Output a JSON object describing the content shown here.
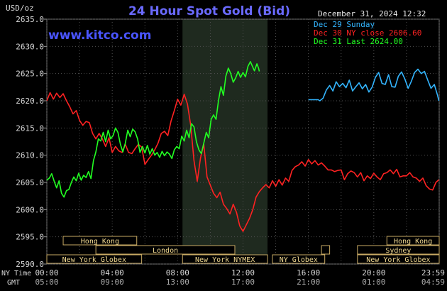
{
  "chart_data": {
    "type": "line",
    "title": "24 Hour Spot Gold (Bid)",
    "unit_label": "USD/oz",
    "watermark": "www.kitco.com",
    "timestamp": "December 31, 2024 12:32",
    "ylim": [
      2590,
      2635
    ],
    "y_ticks": [
      "2635.0",
      "2630.0",
      "2625.0",
      "2620.0",
      "2615.0",
      "2610.0",
      "2605.0",
      "2600.0",
      "2595.0",
      "2590.0"
    ],
    "x_range_hours": [
      0,
      24
    ],
    "x_time_labels": {
      "ny_label": "NY Time",
      "gmt_label": "GMT",
      "ny": [
        "00:00",
        "04:00",
        "08:00",
        "12:00",
        "16:00",
        "20:00",
        "23:59"
      ],
      "gmt": [
        "05:00",
        "09:00",
        "13:00",
        "17:00",
        "21:00",
        "01:00",
        "04:59"
      ]
    },
    "series": [
      {
        "name": "Dec 29 Sunday",
        "color": "#33b5ff",
        "points": [
          [
            16.0,
            2620.2
          ],
          [
            16.6,
            2620.2
          ],
          [
            16.7,
            2620.0
          ],
          [
            16.9,
            2620.5
          ],
          [
            17.1,
            2622.0
          ],
          [
            17.3,
            2622.8
          ],
          [
            17.5,
            2621.8
          ],
          [
            17.7,
            2623.5
          ],
          [
            17.9,
            2622.6
          ],
          [
            18.1,
            2623.2
          ],
          [
            18.3,
            2622.4
          ],
          [
            18.5,
            2623.8
          ],
          [
            18.7,
            2621.8
          ],
          [
            18.9,
            2622.6
          ],
          [
            19.1,
            2623.3
          ],
          [
            19.3,
            2622.2
          ],
          [
            19.5,
            2623.0
          ],
          [
            19.7,
            2621.6
          ],
          [
            19.9,
            2622.5
          ],
          [
            20.1,
            2624.3
          ],
          [
            20.3,
            2625.2
          ],
          [
            20.5,
            2623.2
          ],
          [
            20.7,
            2623.0
          ],
          [
            20.9,
            2624.8
          ],
          [
            21.1,
            2622.6
          ],
          [
            21.3,
            2622.5
          ],
          [
            21.5,
            2624.5
          ],
          [
            21.7,
            2625.3
          ],
          [
            21.9,
            2624.0
          ],
          [
            22.1,
            2622.3
          ],
          [
            22.3,
            2623.6
          ],
          [
            22.5,
            2625.2
          ],
          [
            22.7,
            2625.8
          ],
          [
            22.9,
            2625.0
          ],
          [
            23.1,
            2625.4
          ],
          [
            23.3,
            2623.8
          ],
          [
            23.5,
            2622.3
          ],
          [
            23.7,
            2623.0
          ],
          [
            23.9,
            2621.0
          ],
          [
            23.98,
            2620.0
          ]
        ]
      },
      {
        "name": "Dec 30 NY close 2606.60",
        "color": "#ff2222",
        "points": [
          [
            0.0,
            2620.0
          ],
          [
            0.2,
            2621.5
          ],
          [
            0.4,
            2620.3
          ],
          [
            0.6,
            2621.4
          ],
          [
            0.8,
            2620.6
          ],
          [
            1.0,
            2621.3
          ],
          [
            1.2,
            2620.0
          ],
          [
            1.4,
            2618.9
          ],
          [
            1.6,
            2617.6
          ],
          [
            1.8,
            2618.2
          ],
          [
            2.0,
            2616.4
          ],
          [
            2.2,
            2615.5
          ],
          [
            2.4,
            2616.2
          ],
          [
            2.6,
            2616.0
          ],
          [
            2.8,
            2614.0
          ],
          [
            3.0,
            2613.0
          ],
          [
            3.2,
            2614.0
          ],
          [
            3.4,
            2613.0
          ],
          [
            3.6,
            2611.6
          ],
          [
            3.8,
            2613.2
          ],
          [
            4.0,
            2610.5
          ],
          [
            4.2,
            2611.6
          ],
          [
            4.4,
            2610.8
          ],
          [
            4.6,
            2610.5
          ],
          [
            4.8,
            2612.0
          ],
          [
            5.0,
            2610.5
          ],
          [
            5.2,
            2610.3
          ],
          [
            5.4,
            2611.2
          ],
          [
            5.6,
            2612.0
          ],
          [
            5.8,
            2611.5
          ],
          [
            6.0,
            2608.3
          ],
          [
            6.2,
            2609.2
          ],
          [
            6.4,
            2610.0
          ],
          [
            6.6,
            2611.0
          ],
          [
            6.8,
            2612.2
          ],
          [
            7.0,
            2614.0
          ],
          [
            7.2,
            2614.4
          ],
          [
            7.4,
            2613.6
          ],
          [
            7.6,
            2616.3
          ],
          [
            7.8,
            2618.2
          ],
          [
            8.0,
            2620.3
          ],
          [
            8.2,
            2619.2
          ],
          [
            8.4,
            2621.2
          ],
          [
            8.6,
            2619.4
          ],
          [
            8.8,
            2615.5
          ],
          [
            9.0,
            2609.0
          ],
          [
            9.2,
            2605.2
          ],
          [
            9.4,
            2609.5
          ],
          [
            9.6,
            2612.0
          ],
          [
            9.8,
            2606.0
          ],
          [
            10.0,
            2604.5
          ],
          [
            10.2,
            2603.0
          ],
          [
            10.4,
            2602.2
          ],
          [
            10.6,
            2603.2
          ],
          [
            10.8,
            2601.0
          ],
          [
            11.0,
            2600.2
          ],
          [
            11.2,
            2599.2
          ],
          [
            11.4,
            2601.0
          ],
          [
            11.6,
            2599.5
          ],
          [
            11.8,
            2597.0
          ],
          [
            12.0,
            2596.0
          ],
          [
            12.2,
            2597.2
          ],
          [
            12.4,
            2598.4
          ],
          [
            12.6,
            2600.0
          ],
          [
            12.8,
            2602.3
          ],
          [
            13.0,
            2603.3
          ],
          [
            13.2,
            2604.0
          ],
          [
            13.4,
            2604.6
          ],
          [
            13.6,
            2604.0
          ],
          [
            13.8,
            2605.3
          ],
          [
            14.0,
            2604.3
          ],
          [
            14.2,
            2605.5
          ],
          [
            14.4,
            2604.5
          ],
          [
            14.6,
            2605.8
          ],
          [
            14.8,
            2605.2
          ],
          [
            15.0,
            2607.2
          ],
          [
            15.2,
            2607.9
          ],
          [
            15.4,
            2608.2
          ],
          [
            15.6,
            2608.8
          ],
          [
            15.8,
            2608.0
          ],
          [
            16.0,
            2609.2
          ],
          [
            16.2,
            2608.4
          ],
          [
            16.4,
            2609.0
          ],
          [
            16.6,
            2608.2
          ],
          [
            16.8,
            2608.6
          ],
          [
            17.0,
            2608.0
          ],
          [
            17.2,
            2607.3
          ],
          [
            17.4,
            2607.3
          ],
          [
            17.6,
            2607.0
          ],
          [
            17.8,
            2607.2
          ],
          [
            18.0,
            2607.3
          ],
          [
            18.2,
            2605.5
          ],
          [
            18.4,
            2606.6
          ],
          [
            18.6,
            2607.1
          ],
          [
            18.8,
            2606.8
          ],
          [
            19.0,
            2606.0
          ],
          [
            19.2,
            2606.8
          ],
          [
            19.4,
            2605.3
          ],
          [
            19.6,
            2606.2
          ],
          [
            19.8,
            2605.7
          ],
          [
            20.0,
            2606.7
          ],
          [
            20.2,
            2606.0
          ],
          [
            20.4,
            2605.5
          ],
          [
            20.6,
            2606.6
          ],
          [
            20.8,
            2606.8
          ],
          [
            21.0,
            2607.3
          ],
          [
            21.2,
            2606.6
          ],
          [
            21.4,
            2607.4
          ],
          [
            21.6,
            2606.0
          ],
          [
            21.8,
            2606.2
          ],
          [
            22.0,
            2606.2
          ],
          [
            22.2,
            2606.8
          ],
          [
            22.4,
            2606.0
          ],
          [
            22.6,
            2605.8
          ],
          [
            22.8,
            2605.2
          ],
          [
            23.0,
            2605.8
          ],
          [
            23.2,
            2604.4
          ],
          [
            23.4,
            2603.8
          ],
          [
            23.6,
            2603.6
          ],
          [
            23.8,
            2605.0
          ],
          [
            23.98,
            2605.5
          ]
        ]
      },
      {
        "name": "Dec 31 Last 2624.00",
        "color": "#22ff22",
        "points": [
          [
            0.0,
            2605.4
          ],
          [
            0.15,
            2605.8
          ],
          [
            0.3,
            2606.6
          ],
          [
            0.45,
            2605.2
          ],
          [
            0.6,
            2604.0
          ],
          [
            0.75,
            2605.3
          ],
          [
            0.9,
            2603.0
          ],
          [
            1.05,
            2602.3
          ],
          [
            1.2,
            2603.5
          ],
          [
            1.35,
            2603.7
          ],
          [
            1.5,
            2605.0
          ],
          [
            1.65,
            2606.0
          ],
          [
            1.8,
            2605.3
          ],
          [
            1.95,
            2606.7
          ],
          [
            2.1,
            2605.4
          ],
          [
            2.25,
            2606.3
          ],
          [
            2.4,
            2605.9
          ],
          [
            2.55,
            2607.0
          ],
          [
            2.7,
            2605.7
          ],
          [
            2.85,
            2609.0
          ],
          [
            3.0,
            2610.6
          ],
          [
            3.15,
            2613.0
          ],
          [
            3.3,
            2612.6
          ],
          [
            3.45,
            2614.2
          ],
          [
            3.6,
            2612.5
          ],
          [
            3.75,
            2614.6
          ],
          [
            3.9,
            2613.0
          ],
          [
            4.05,
            2613.6
          ],
          [
            4.2,
            2615.0
          ],
          [
            4.35,
            2614.2
          ],
          [
            4.5,
            2612.0
          ],
          [
            4.65,
            2610.6
          ],
          [
            4.8,
            2612.2
          ],
          [
            4.95,
            2614.6
          ],
          [
            5.1,
            2613.4
          ],
          [
            5.25,
            2614.8
          ],
          [
            5.4,
            2614.3
          ],
          [
            5.55,
            2613.0
          ],
          [
            5.7,
            2610.5
          ],
          [
            5.85,
            2611.6
          ],
          [
            6.0,
            2610.4
          ],
          [
            6.15,
            2611.8
          ],
          [
            6.3,
            2610.2
          ],
          [
            6.45,
            2611.2
          ],
          [
            6.6,
            2610.0
          ],
          [
            6.75,
            2610.5
          ],
          [
            6.9,
            2609.6
          ],
          [
            7.05,
            2610.7
          ],
          [
            7.2,
            2609.9
          ],
          [
            7.35,
            2610.6
          ],
          [
            7.5,
            2610.2
          ],
          [
            7.65,
            2609.4
          ],
          [
            7.8,
            2611.0
          ],
          [
            7.95,
            2611.6
          ],
          [
            8.1,
            2611.2
          ],
          [
            8.25,
            2613.5
          ],
          [
            8.4,
            2612.6
          ],
          [
            8.55,
            2614.6
          ],
          [
            8.7,
            2613.2
          ],
          [
            8.85,
            2615.8
          ],
          [
            9.0,
            2615.2
          ],
          [
            9.15,
            2612.5
          ],
          [
            9.3,
            2611.0
          ],
          [
            9.45,
            2610.3
          ],
          [
            9.6,
            2612.2
          ],
          [
            9.75,
            2614.2
          ],
          [
            9.9,
            2613.2
          ],
          [
            10.05,
            2616.6
          ],
          [
            10.2,
            2617.4
          ],
          [
            10.35,
            2616.6
          ],
          [
            10.5,
            2620.0
          ],
          [
            10.65,
            2622.6
          ],
          [
            10.8,
            2621.0
          ],
          [
            10.95,
            2624.5
          ],
          [
            11.1,
            2626.0
          ],
          [
            11.25,
            2625.0
          ],
          [
            11.4,
            2623.4
          ],
          [
            11.55,
            2624.2
          ],
          [
            11.7,
            2625.4
          ],
          [
            11.85,
            2624.3
          ],
          [
            12.0,
            2625.2
          ],
          [
            12.15,
            2624.4
          ],
          [
            12.3,
            2626.3
          ],
          [
            12.45,
            2627.2
          ],
          [
            12.55,
            2626.5
          ],
          [
            12.7,
            2625.5
          ],
          [
            12.85,
            2626.8
          ],
          [
            12.95,
            2626.0
          ],
          [
            13.0,
            2625.4
          ]
        ]
      }
    ],
    "sessions": [
      {
        "label": "Hong Kong",
        "row": 1,
        "start": 1.0,
        "end": 5.5,
        "color": "#c8aa64",
        "stub": false
      },
      {
        "label": "Hong Kong",
        "row": 1,
        "start": 20.8,
        "end": 24.0,
        "color": "#c8aa64",
        "stub": false
      },
      {
        "label": "London",
        "row": 2,
        "start": 3.0,
        "end": 11.5,
        "color": "#c8aa64",
        "stub": false
      },
      {
        "label": "Sydney",
        "row": 2,
        "start": 19.0,
        "end": 24.0,
        "color": "#c8aa64",
        "stub": false
      },
      {
        "label": "",
        "row": 2,
        "start": 16.8,
        "end": 17.3,
        "color": "#c8aa64",
        "stub": true
      },
      {
        "label": "New York Globex",
        "row": 3,
        "start": 0.0,
        "end": 5.8,
        "color": "#c8aa64",
        "stub": false
      },
      {
        "label": "New York NYMEX",
        "row": 3,
        "start": 8.3,
        "end": 13.5,
        "color": "#c8aa64",
        "stub": false
      },
      {
        "label": "NY Globex",
        "row": 3,
        "start": 13.8,
        "end": 17.0,
        "color": "#c8aa64",
        "stub": false
      },
      {
        "label": "New York Globex",
        "row": 3,
        "start": 19.0,
        "end": 24.0,
        "color": "#c8aa64",
        "stub": false
      }
    ],
    "highlight_band_hours": [
      8.3,
      13.5
    ],
    "grid": "dotted",
    "legend_position": "top-right"
  },
  "colors": {
    "background": "#000000",
    "plot_background": "#000000",
    "highlight_band": "#1f2a1f",
    "title": "#6a6aff",
    "watermark": "#4a55ff",
    "axis_text": "#d8d8d8",
    "grid": "#505050",
    "session_text": "#f0d890"
  }
}
